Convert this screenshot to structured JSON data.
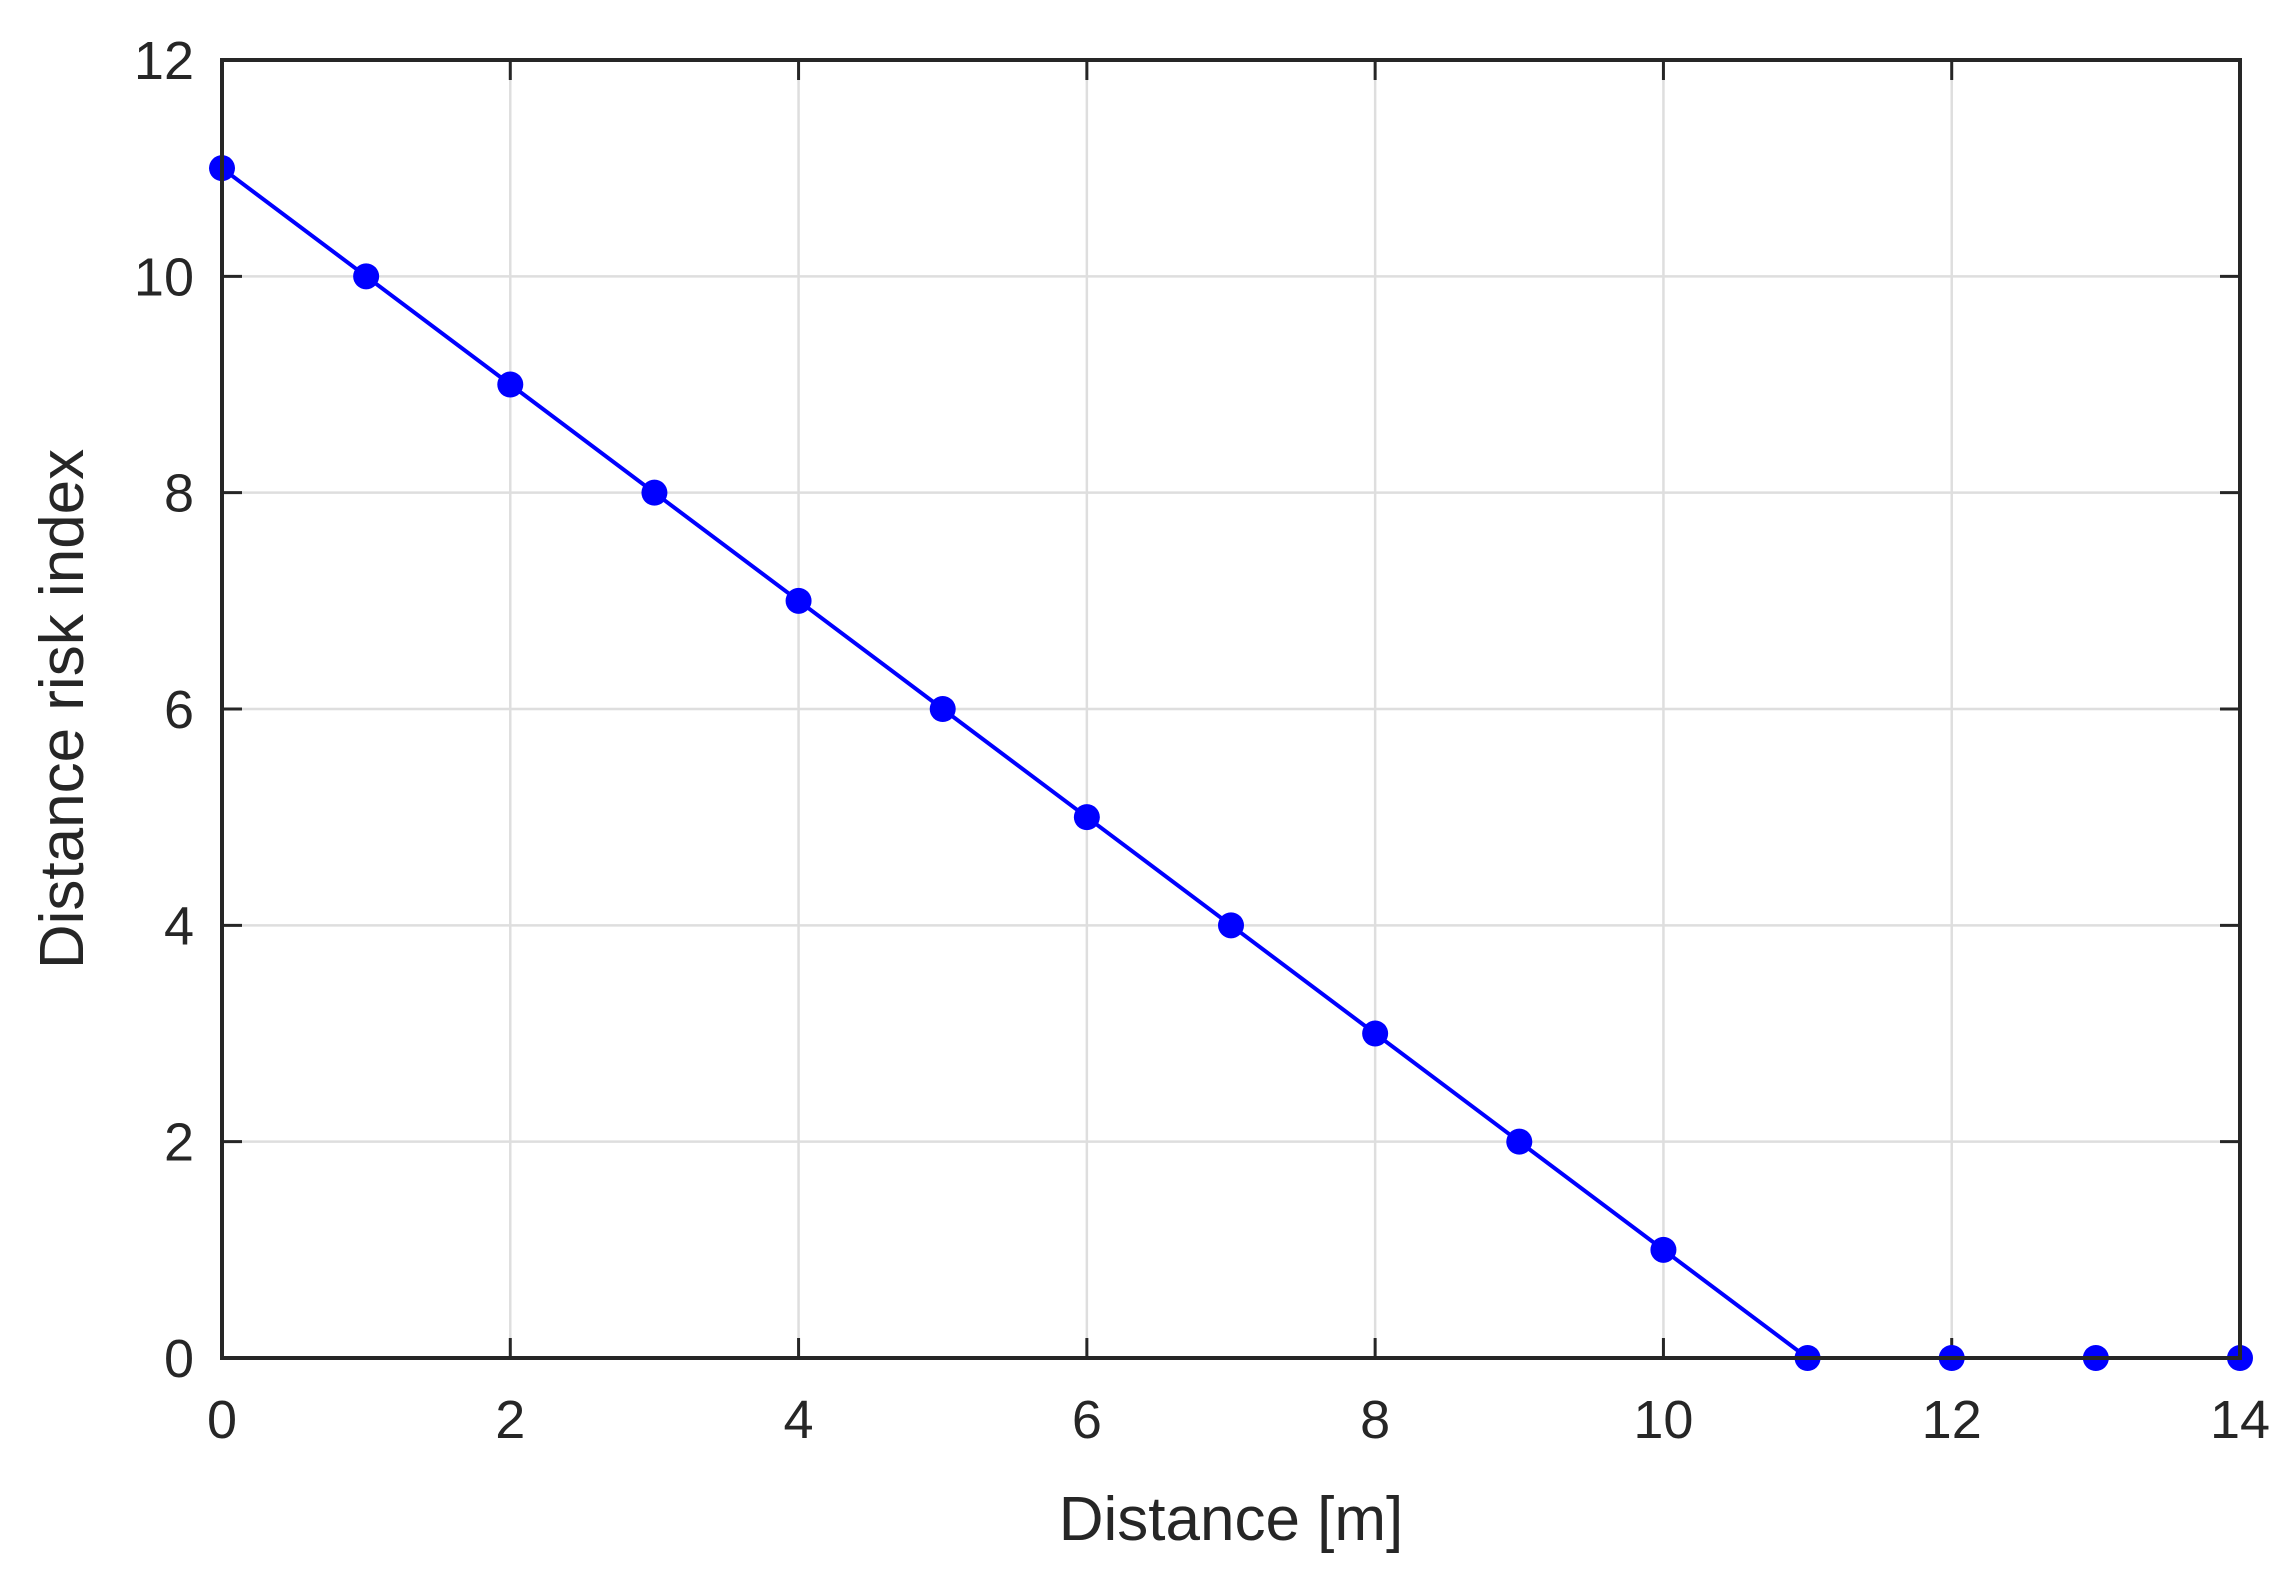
{
  "chart_data": {
    "type": "line",
    "title": "",
    "xlabel": "Distance [m]",
    "ylabel": "Distance risk index",
    "xlim": [
      0,
      14
    ],
    "ylim": [
      0,
      12
    ],
    "xticks": [
      0,
      2,
      4,
      6,
      8,
      10,
      12,
      14
    ],
    "yticks": [
      0,
      2,
      4,
      6,
      8,
      10,
      12
    ],
    "grid": true,
    "legend": "none",
    "series": [
      {
        "color": "#0000ff",
        "marker": "circle",
        "x": [
          0,
          1,
          2,
          3,
          4,
          5,
          6,
          7,
          8,
          9,
          10,
          11,
          12,
          13,
          14
        ],
        "y": [
          11,
          10,
          9,
          8,
          7,
          6,
          5,
          4,
          3,
          2,
          1,
          0,
          0,
          0,
          0
        ]
      }
    ]
  }
}
